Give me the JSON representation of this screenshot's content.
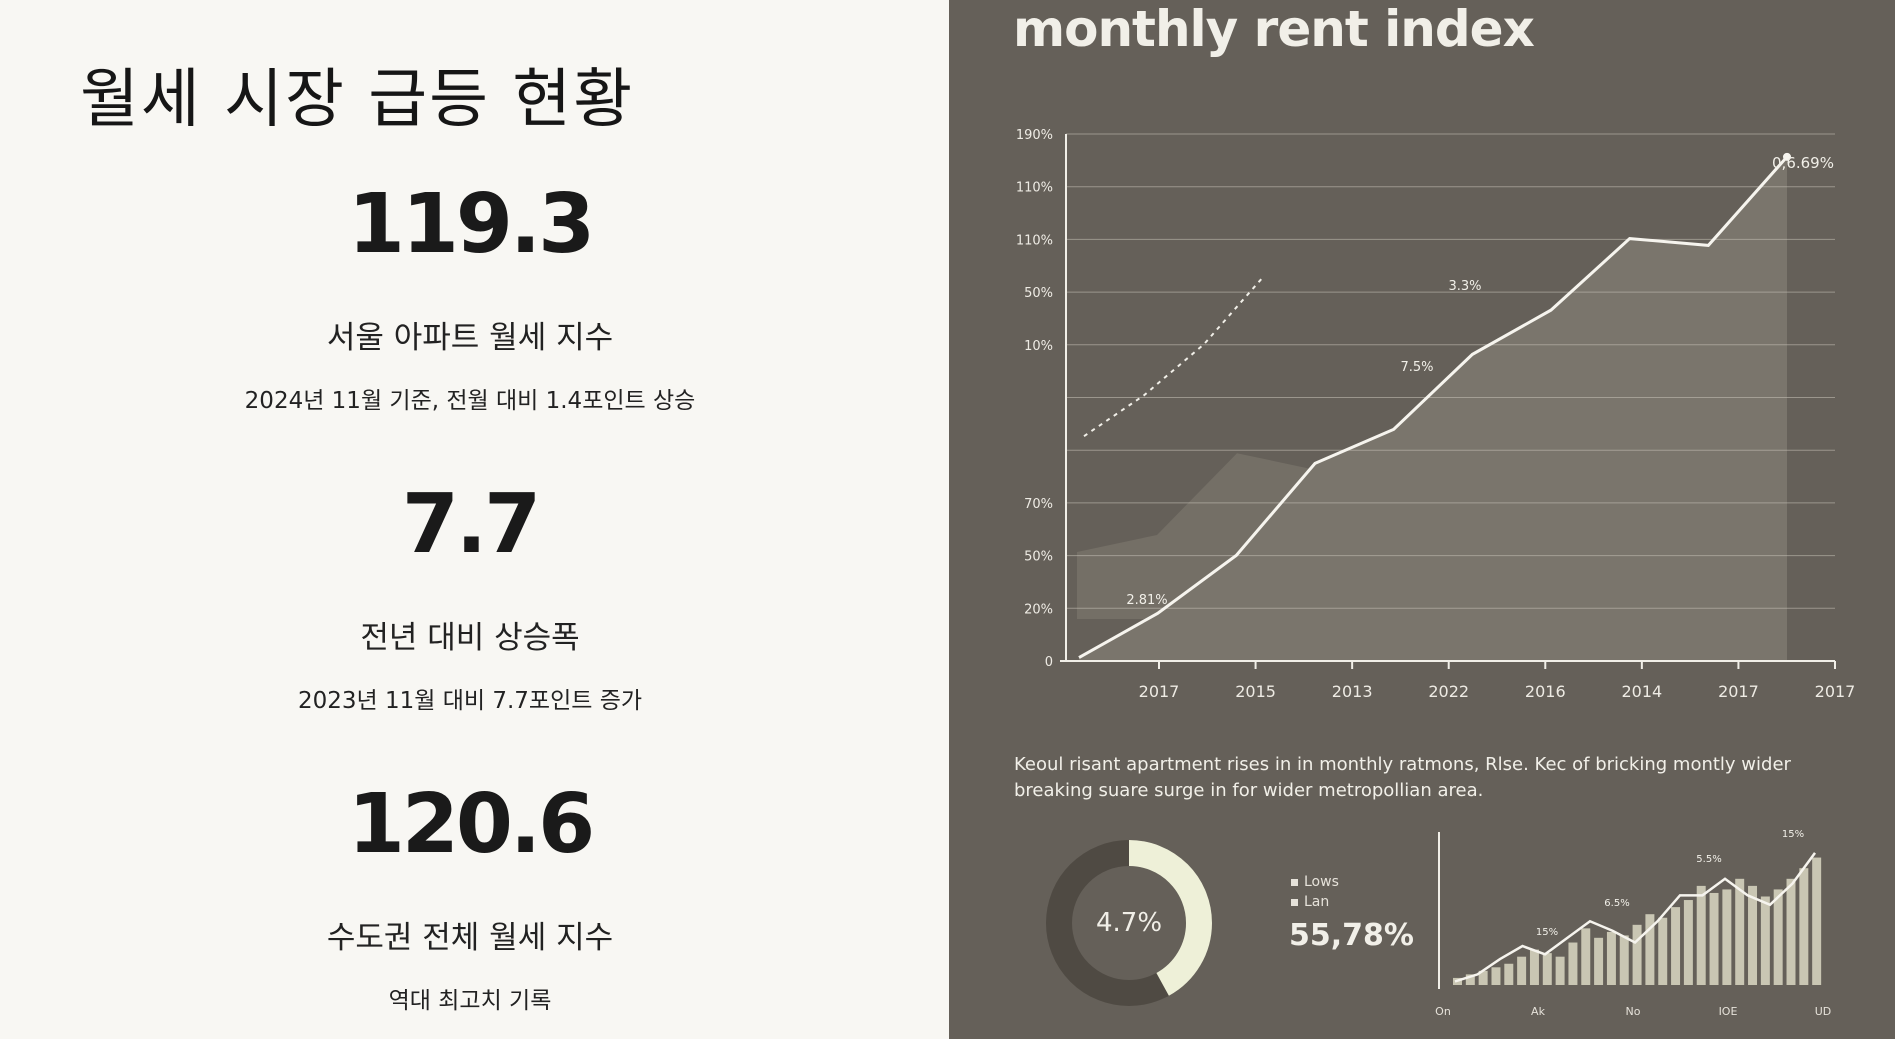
{
  "left": {
    "title": "월세 시장 급등 현황",
    "stats": [
      {
        "value": "119.3",
        "label": "서울 아파트 월세 지수",
        "note": "2024년 11월 기준, 전월 대비 1.4포인트 상승"
      },
      {
        "value": "7.7",
        "label": "전년 대비 상승폭",
        "note": "2023년 11월 대비 7.7포인트 증가"
      },
      {
        "value": "120.6",
        "label": "수도권 전체 월세 지수",
        "note": "역대 최고치 기록"
      }
    ]
  },
  "infographic": {
    "title": "monthly rent index",
    "caption_lines": [
      "Keoul risant apartment rises in in monthly ratmons, Rlse. Kec of bricking montly wider",
      "breaking suare surge in for wider metropollian area."
    ],
    "donut_value": "4.7%",
    "donut_fraction": 0.42,
    "legend": [
      "Lows",
      "Lan"
    ],
    "legend_value": "55,78%",
    "colors": {
      "panel": "#656059",
      "line": "#f1efe8",
      "area": "#7a756c",
      "bars": "#c9c6b3",
      "donut": "#eef0d8"
    }
  },
  "chart_data": [
    {
      "type": "line",
      "title": "monthly rent index",
      "y_tick_labels": [
        "0",
        "20%",
        "50%",
        "70%",
        "",
        "",
        "10%",
        "50%",
        "110%",
        "110%",
        "190%"
      ],
      "x_tick_labels": [
        "2017",
        "2015",
        "2013",
        "2022",
        "2016",
        "2014",
        "2017",
        "2017"
      ],
      "annotations": [
        "0,6.69%",
        "3.3%",
        "7.5%",
        "2.81%"
      ],
      "series": [
        {
          "style": "solid",
          "values": [
            1,
            14,
            31,
            58,
            68,
            90,
            103,
            124,
            122,
            148
          ]
        },
        {
          "style": "dashed",
          "values": [
            66,
            78,
            93,
            113
          ]
        },
        {
          "style": "area",
          "values": [
            32,
            37,
            61,
            56,
            60
          ]
        }
      ],
      "grid": true
    },
    {
      "type": "bar",
      "x_tick_labels": [
        "On",
        "Ak",
        "No",
        "IOE",
        "UD"
      ],
      "annotations": [
        "15%",
        "6.5%",
        "5.5%",
        "15%"
      ],
      "values": [
        6,
        9,
        12,
        15,
        18,
        24,
        30,
        27,
        24,
        36,
        48,
        40,
        45,
        42,
        51,
        60,
        57,
        66,
        72,
        84,
        78,
        81,
        90,
        84,
        75,
        81,
        90,
        99,
        108
      ],
      "line_values": [
        3,
        9,
        22,
        33,
        26,
        40,
        54,
        46,
        36,
        54,
        76,
        76,
        90,
        76,
        68,
        86,
        112
      ]
    }
  ]
}
